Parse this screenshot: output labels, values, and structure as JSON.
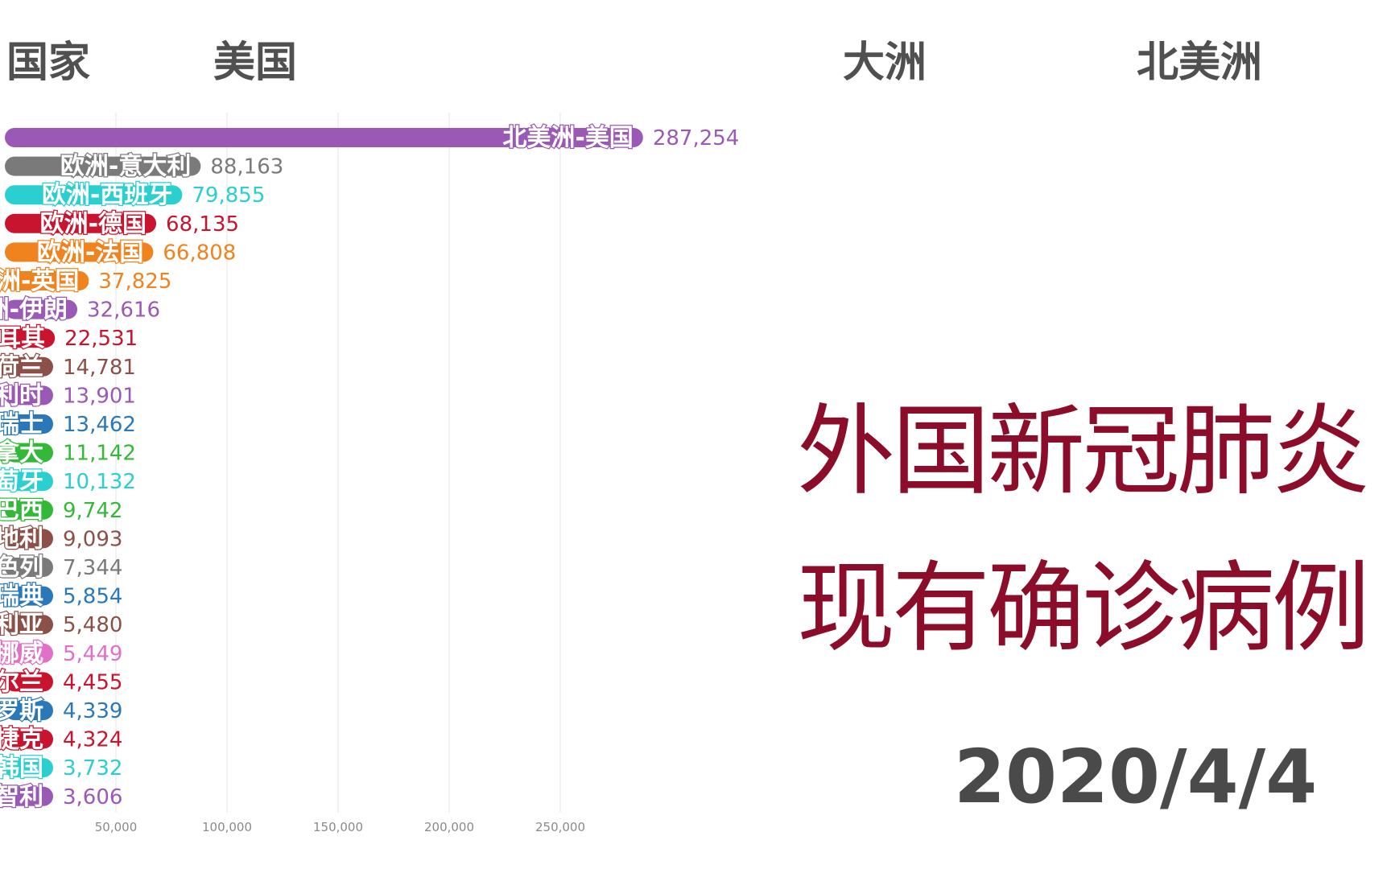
{
  "header": {
    "country_label": "国家",
    "country_value": "美国",
    "continent_label": "大洲",
    "continent_value": "北美洲"
  },
  "title": {
    "line1": "外国新冠肺炎",
    "line2": "现有确诊病例"
  },
  "date": "2020/4/4",
  "chart_data": {
    "type": "bar",
    "orientation": "horizontal",
    "categories": [
      "北美洲-美国",
      "欧洲-意大利",
      "欧洲-西班牙",
      "欧洲-德国",
      "欧洲-法国",
      "欧洲-英国",
      "亚洲-伊朗",
      "亚洲-土耳其",
      "欧洲-荷兰",
      "欧洲-比利时",
      "欧洲-瑞士",
      "北美洲-加拿大",
      "欧洲-葡萄牙",
      "南美洲-巴西",
      "欧洲-奥地利",
      "亚洲-以色列",
      "欧洲-瑞典",
      "大洋洲-澳大利亚",
      "欧洲-挪威",
      "欧洲-爱尔兰",
      "欧洲-俄罗斯",
      "欧洲-捷克",
      "亚洲-韩国",
      "南美洲-智利"
    ],
    "values": [
      287254,
      88163,
      79855,
      68135,
      66808,
      37825,
      32616,
      22531,
      14781,
      13901,
      13462,
      11142,
      10132,
      9742,
      9093,
      7344,
      5854,
      5480,
      5449,
      4455,
      4339,
      4324,
      3732,
      3606
    ],
    "value_labels": [
      "287,254",
      "88,163",
      "79,855",
      "68,135",
      "66,808",
      "37,825",
      "32,616",
      "22,531",
      "14,781",
      "13,901",
      "13,462",
      "11,142",
      "10,132",
      "9,742",
      "9,093",
      "7,344",
      "5,854",
      "5,480",
      "5,449",
      "4,455",
      "4,339",
      "4,324",
      "3,732",
      "3,606"
    ],
    "colors": [
      "#9b59b6",
      "#7a7a7a",
      "#2bcfcf",
      "#c8142e",
      "#f0831e",
      "#f0831e",
      "#9b59b6",
      "#c8142e",
      "#8c5048",
      "#9b59b6",
      "#2a78b8",
      "#34b83a",
      "#2bcfcf",
      "#34b83a",
      "#8c5048",
      "#7a7a7a",
      "#2a78b8",
      "#8c5048",
      "#e070c8",
      "#c8142e",
      "#2a78b8",
      "#c8142e",
      "#2bcfcf",
      "#9b59b6"
    ],
    "xticks": [
      50000,
      100000,
      150000,
      200000,
      250000
    ],
    "xtick_labels": [
      "50,000",
      "100,000",
      "150,000",
      "200,000",
      "250,000"
    ],
    "grid": true
  }
}
